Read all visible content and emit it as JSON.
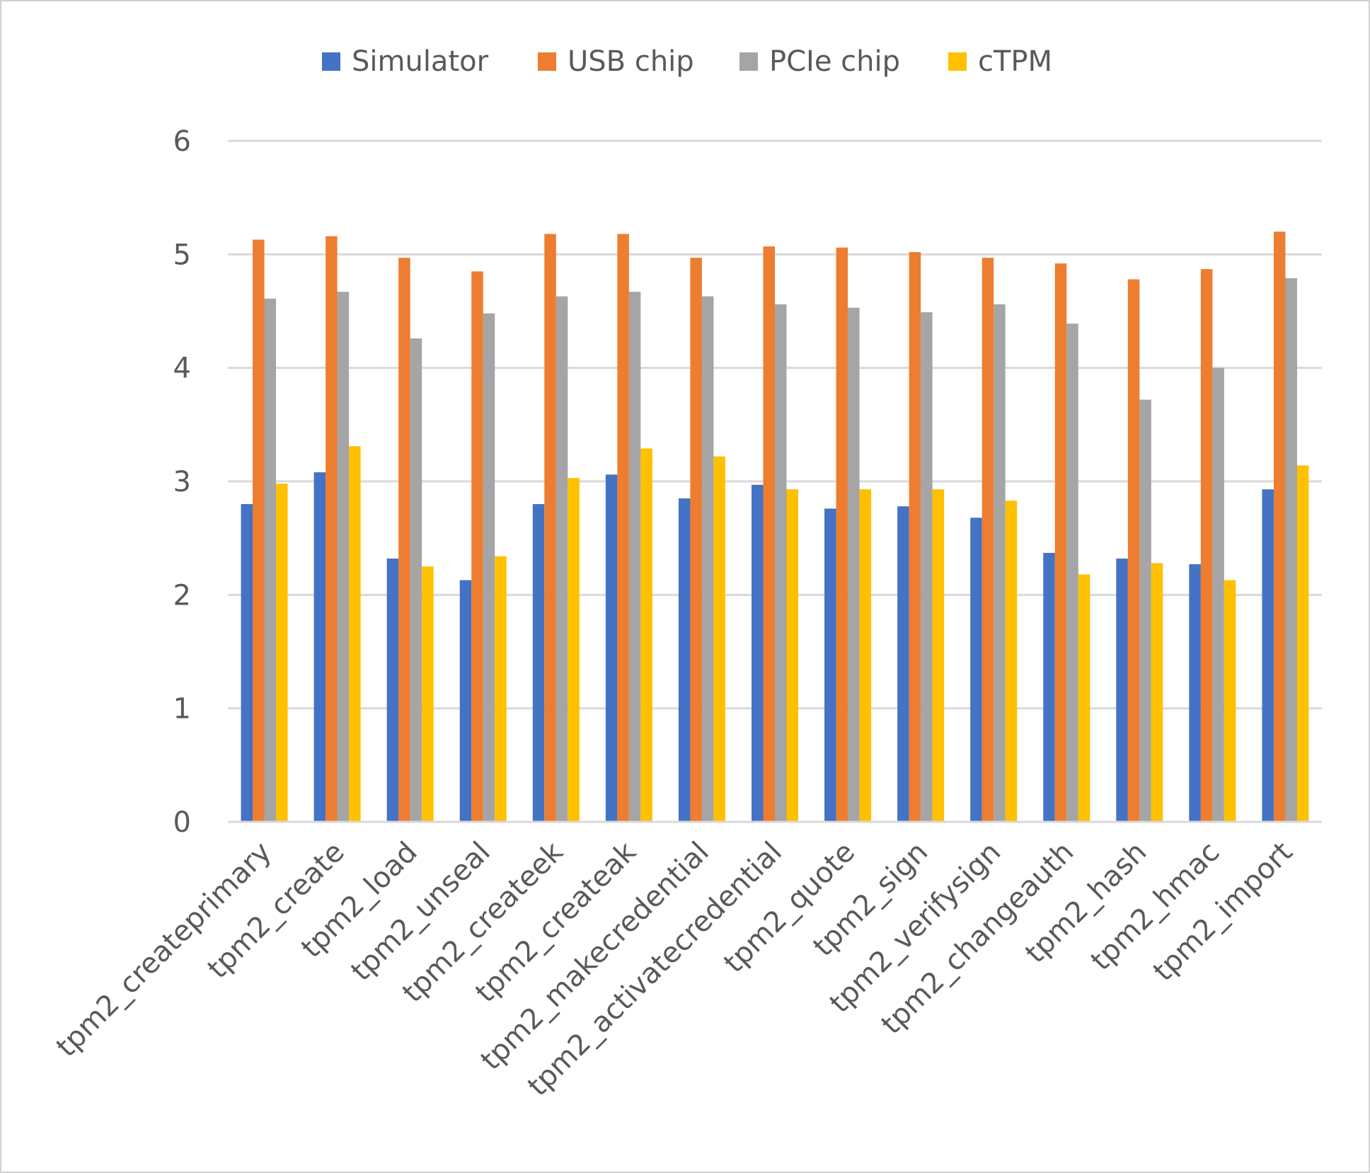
{
  "chart_data": {
    "type": "bar",
    "title": "",
    "xlabel": "",
    "ylabel": "",
    "ylim": [
      0,
      6
    ],
    "yticks": [
      "0",
      "1",
      "2",
      "3",
      "4",
      "5",
      "6"
    ],
    "grid": true,
    "legend_position": "top",
    "categories": [
      "tpm2_createprimary",
      "tpm2_create",
      "tpm2_load",
      "tpm2_unseal",
      "tpm2_createek",
      "tpm2_createak",
      "tpm2_makecredential",
      "tpm2_activatecredential",
      "tpm2_quote",
      "tpm2_sign",
      "tpm2_verifysign",
      "tpm2_changeauth",
      "tpm2_hash",
      "tpm2_hmac",
      "tpm2_import"
    ],
    "series": [
      {
        "name": "Simulator",
        "color": "#4472c4",
        "values": [
          2.8,
          3.08,
          2.32,
          2.13,
          2.8,
          3.06,
          2.85,
          2.97,
          2.76,
          2.78,
          2.68,
          2.37,
          2.32,
          2.27,
          2.93
        ]
      },
      {
        "name": "USB chip",
        "color": "#ed7d31",
        "values": [
          5.13,
          5.16,
          4.97,
          4.85,
          5.18,
          5.18,
          4.97,
          5.07,
          5.06,
          5.02,
          4.97,
          4.92,
          4.78,
          4.87,
          5.2
        ]
      },
      {
        "name": "PCIe chip",
        "color": "#a5a5a5",
        "values": [
          4.61,
          4.67,
          4.26,
          4.48,
          4.63,
          4.67,
          4.63,
          4.56,
          4.53,
          4.49,
          4.56,
          4.39,
          3.72,
          4.0,
          4.79
        ]
      },
      {
        "name": "cTPM",
        "color": "#ffc000",
        "values": [
          2.98,
          3.31,
          2.25,
          2.34,
          3.03,
          3.29,
          3.22,
          2.93,
          2.93,
          2.93,
          2.83,
          2.18,
          2.28,
          2.13,
          3.14
        ]
      }
    ]
  }
}
